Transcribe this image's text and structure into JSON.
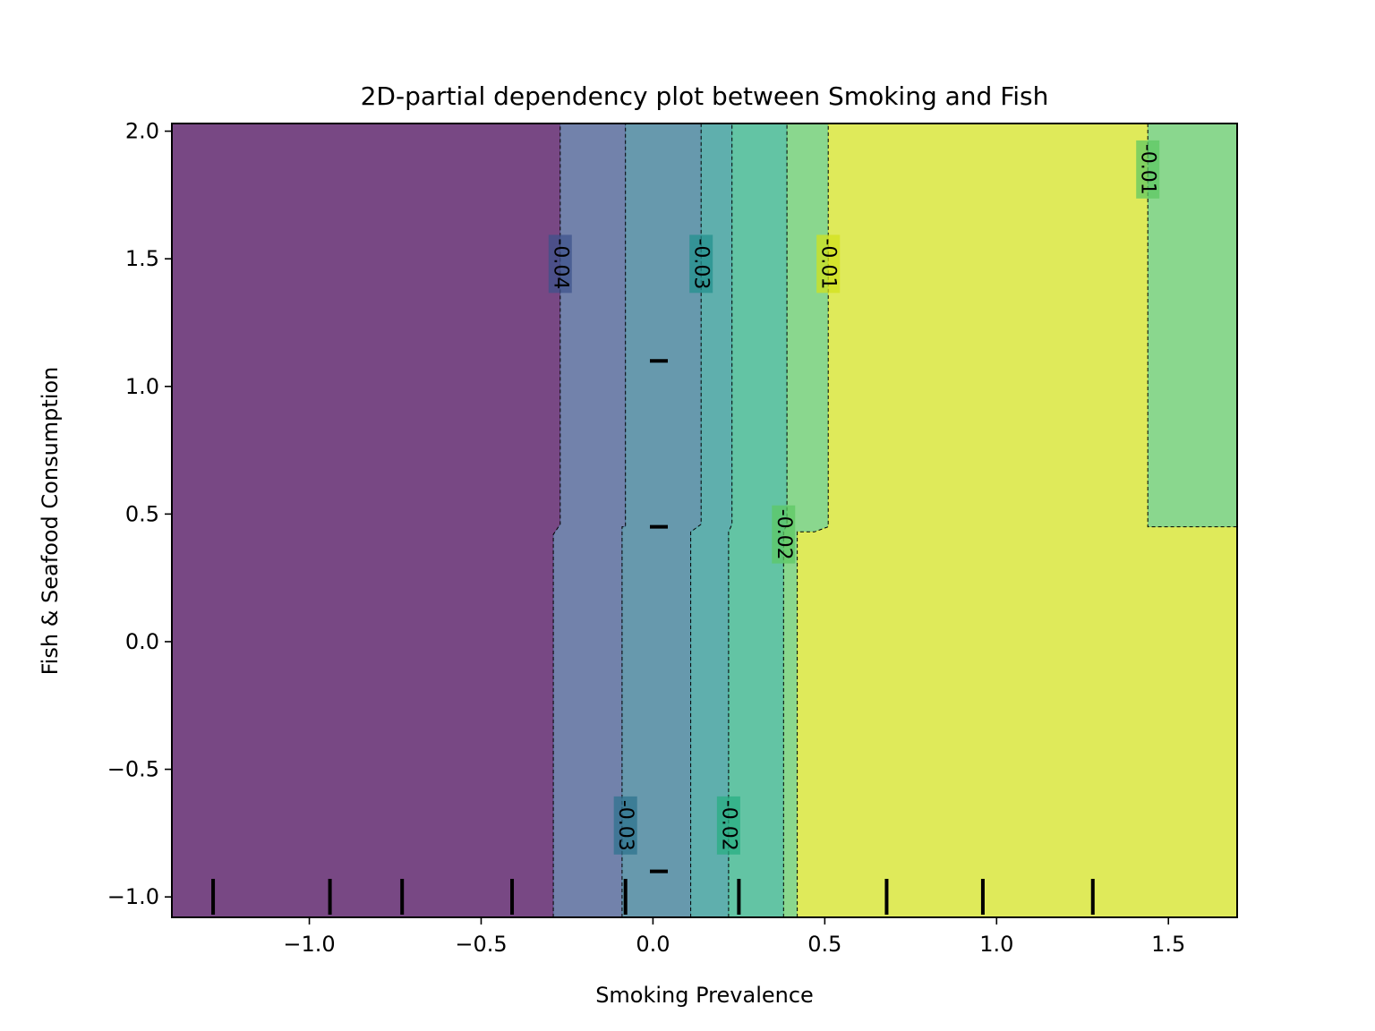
{
  "chart_data": {
    "type": "contourf",
    "title": "2D-partial dependency plot between Smoking and Fish",
    "xlabel": "Smoking Prevalence",
    "ylabel": "Fish & Seafood Consumption",
    "xlim": [
      -1.4,
      1.7
    ],
    "ylim": [
      -1.08,
      2.03
    ],
    "xticks": [
      {
        "value": -1.0,
        "label": "−1.0"
      },
      {
        "value": -0.5,
        "label": "−0.5"
      },
      {
        "value": 0.0,
        "label": "0.0"
      },
      {
        "value": 0.5,
        "label": "0.5"
      },
      {
        "value": 1.0,
        "label": "1.0"
      },
      {
        "value": 1.5,
        "label": "1.5"
      }
    ],
    "yticks": [
      {
        "value": -1.0,
        "label": "−1.0"
      },
      {
        "value": -0.5,
        "label": "−0.5"
      },
      {
        "value": 0.0,
        "label": "0.0"
      },
      {
        "value": 0.5,
        "label": "0.5"
      },
      {
        "value": 1.0,
        "label": "1.0"
      },
      {
        "value": 1.5,
        "label": "1.5"
      },
      {
        "value": 2.0,
        "label": "2.0"
      }
    ],
    "colormap": [
      "#440154",
      "#3b528b",
      "#21908d",
      "#27a08a",
      "#5dc863",
      "#d2e21b",
      "#bddf26"
    ],
    "bands": [
      {
        "name": "level-0",
        "color": "#440154",
        "polygon": [
          [
            -1.4,
            -1.08
          ],
          [
            -0.29,
            -1.08
          ],
          [
            -0.29,
            0.42
          ],
          [
            -0.27,
            0.46
          ],
          [
            -0.27,
            2.03
          ],
          [
            -1.4,
            2.03
          ]
        ]
      },
      {
        "name": "level-1",
        "color": "#3b528b",
        "polygon": [
          [
            -0.29,
            -1.08
          ],
          [
            -0.09,
            -1.08
          ],
          [
            -0.09,
            0.45
          ],
          [
            -0.08,
            0.45
          ],
          [
            -0.08,
            2.03
          ],
          [
            -0.27,
            2.03
          ],
          [
            -0.27,
            0.46
          ],
          [
            -0.29,
            0.42
          ]
        ]
      },
      {
        "name": "level-2",
        "color": "#2c728e",
        "polygon": [
          [
            -0.09,
            -1.08
          ],
          [
            0.11,
            -1.08
          ],
          [
            0.11,
            0.43
          ],
          [
            0.14,
            0.46
          ],
          [
            0.14,
            2.03
          ],
          [
            -0.08,
            2.03
          ],
          [
            -0.08,
            0.45
          ],
          [
            -0.09,
            0.45
          ]
        ]
      },
      {
        "name": "level-3",
        "color": "#21908d",
        "polygon": [
          [
            0.11,
            -1.08
          ],
          [
            0.22,
            -1.08
          ],
          [
            0.22,
            0.43
          ],
          [
            0.23,
            0.46
          ],
          [
            0.23,
            2.03
          ],
          [
            0.14,
            2.03
          ],
          [
            0.14,
            0.46
          ],
          [
            0.11,
            0.43
          ]
        ]
      },
      {
        "name": "level-4",
        "color": "#27ad81",
        "polygon": [
          [
            0.22,
            -1.08
          ],
          [
            0.38,
            -1.08
          ],
          [
            0.38,
            0.43
          ],
          [
            0.39,
            0.46
          ],
          [
            0.39,
            2.03
          ],
          [
            0.23,
            2.03
          ],
          [
            0.23,
            0.46
          ],
          [
            0.22,
            0.43
          ]
        ]
      },
      {
        "name": "level-5",
        "color": "#5dc863",
        "polygon": [
          [
            0.38,
            -1.08
          ],
          [
            0.42,
            -1.08
          ],
          [
            0.42,
            0.43
          ],
          [
            0.47,
            0.43
          ],
          [
            0.51,
            0.45
          ],
          [
            0.51,
            2.03
          ],
          [
            0.39,
            2.03
          ],
          [
            0.39,
            0.46
          ],
          [
            0.38,
            0.43
          ]
        ]
      },
      {
        "name": "level-6",
        "color": "#d2e21b",
        "polygon": [
          [
            0.42,
            -1.08
          ],
          [
            1.7,
            -1.08
          ],
          [
            1.7,
            0.45
          ],
          [
            1.44,
            0.45
          ],
          [
            1.44,
            2.03
          ],
          [
            0.51,
            2.03
          ],
          [
            0.51,
            0.45
          ],
          [
            0.47,
            0.43
          ],
          [
            0.42,
            0.43
          ]
        ]
      },
      {
        "name": "level-7",
        "color": "#5dc863",
        "polygon": [
          [
            1.44,
            0.45
          ],
          [
            1.7,
            0.45
          ],
          [
            1.7,
            2.03
          ],
          [
            1.44,
            2.03
          ]
        ]
      }
    ],
    "contour_lines": [
      {
        "name": "line-a",
        "points": [
          [
            -0.29,
            -1.08
          ],
          [
            -0.29,
            0.42
          ],
          [
            -0.27,
            0.46
          ],
          [
            -0.27,
            2.03
          ]
        ]
      },
      {
        "name": "line-b",
        "points": [
          [
            -0.09,
            -1.08
          ],
          [
            -0.09,
            0.45
          ],
          [
            -0.08,
            0.45
          ],
          [
            -0.08,
            2.03
          ]
        ]
      },
      {
        "name": "line-c",
        "points": [
          [
            0.11,
            -1.08
          ],
          [
            0.11,
            0.43
          ],
          [
            0.14,
            0.46
          ],
          [
            0.14,
            2.03
          ]
        ]
      },
      {
        "name": "line-d",
        "points": [
          [
            0.22,
            -1.08
          ],
          [
            0.22,
            0.43
          ],
          [
            0.23,
            0.46
          ],
          [
            0.23,
            2.03
          ]
        ]
      },
      {
        "name": "line-e",
        "points": [
          [
            0.38,
            -1.08
          ],
          [
            0.38,
            0.43
          ],
          [
            0.39,
            0.46
          ],
          [
            0.39,
            2.03
          ]
        ]
      },
      {
        "name": "line-f",
        "points": [
          [
            0.42,
            -1.08
          ],
          [
            0.42,
            0.43
          ],
          [
            0.47,
            0.43
          ],
          [
            0.51,
            0.45
          ],
          [
            0.51,
            2.03
          ]
        ]
      },
      {
        "name": "line-g",
        "points": [
          [
            1.44,
            2.03
          ],
          [
            1.44,
            0.45
          ],
          [
            1.7,
            0.45
          ]
        ]
      }
    ],
    "contour_labels": [
      {
        "text": "-0.04",
        "x": -0.27,
        "y": 1.48
      },
      {
        "text": "-0.03",
        "x": 0.14,
        "y": 1.48
      },
      {
        "text": "-0.01",
        "x": 0.51,
        "y": 1.48
      },
      {
        "text": "-0.02",
        "x": 0.38,
        "y": 0.42
      },
      {
        "text": "-0.03",
        "x": -0.08,
        "y": -0.72
      },
      {
        "text": "-0.02",
        "x": 0.22,
        "y": -0.72
      },
      {
        "text": "-0.01",
        "x": 1.44,
        "y": 1.85
      }
    ],
    "x_rug": [
      -1.28,
      -0.94,
      -0.73,
      -0.41,
      -0.08,
      0.25,
      0.68,
      0.96,
      1.28
    ],
    "y_rug": [
      1.1,
      0.45,
      -0.9
    ]
  }
}
